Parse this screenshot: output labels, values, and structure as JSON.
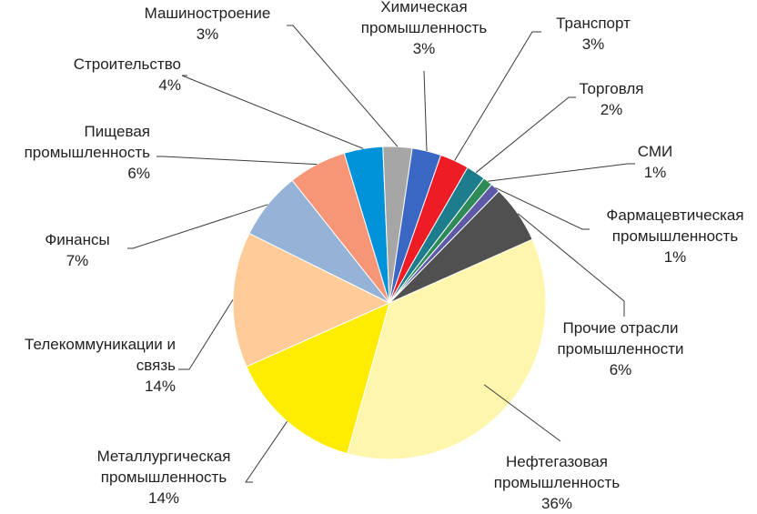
{
  "chart_data": {
    "type": "pie",
    "title": "",
    "slices": [
      {
        "lines": [
          "Нефтегазовая",
          "промышленность"
        ],
        "pct": "36%",
        "value": 36,
        "color": "#FFF6AE"
      },
      {
        "lines": [
          "Металлургическая",
          "промышленность"
        ],
        "pct": "14%",
        "value": 14,
        "color": "#FFEC00"
      },
      {
        "lines": [
          "Телекоммуникации и",
          "связь"
        ],
        "pct": "14%",
        "value": 14,
        "color": "#FFCC99"
      },
      {
        "lines": [
          "Финансы"
        ],
        "pct": "7%",
        "value": 7,
        "color": "#95B3D7"
      },
      {
        "lines": [
          "Пищевая",
          "промышленность"
        ],
        "pct": "6%",
        "value": 6,
        "color": "#F79677"
      },
      {
        "lines": [
          "Строительство"
        ],
        "pct": "4%",
        "value": 4,
        "color": "#0092D9"
      },
      {
        "lines": [
          "Машиностроение"
        ],
        "pct": "3%",
        "value": 3,
        "color": "#A6A6A6"
      },
      {
        "lines": [
          "Химическая",
          "промышленность"
        ],
        "pct": "3%",
        "value": 3,
        "color": "#3A66C4"
      },
      {
        "lines": [
          "Транспорт"
        ],
        "pct": "3%",
        "value": 3,
        "color": "#EE1C25"
      },
      {
        "lines": [
          "Торговля"
        ],
        "pct": "2%",
        "value": 2,
        "color": "#1D7D8C"
      },
      {
        "lines": [
          "СМИ"
        ],
        "pct": "1%",
        "value": 1,
        "color": "#2E8B57"
      },
      {
        "lines": [
          "Фармацевтическая",
          "промышленность"
        ],
        "pct": "1%",
        "value": 1,
        "color": "#5E5AA8"
      },
      {
        "lines": [
          "Прочие отрасли",
          "промышленности"
        ],
        "pct": "6%",
        "value": 6,
        "color": "#505050"
      }
    ]
  }
}
